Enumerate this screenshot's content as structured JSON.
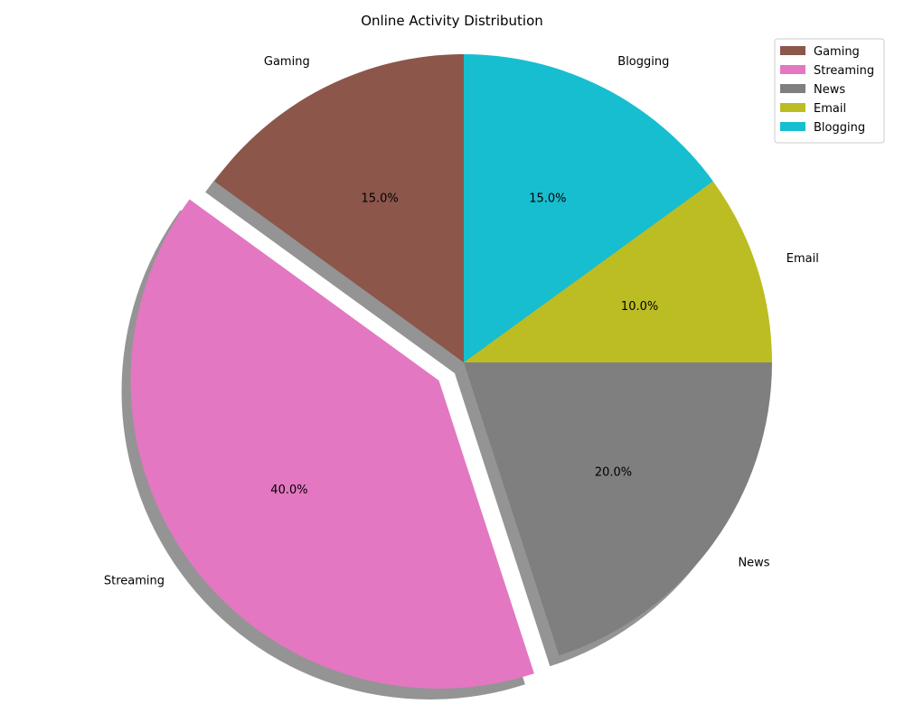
{
  "chart_data": {
    "type": "pie",
    "title": "Online Activity Distribution",
    "slices": [
      {
        "label": "Gaming",
        "value": 15.0,
        "pct_label": "15.0%",
        "color": "#8c564b",
        "explode": false
      },
      {
        "label": "Streaming",
        "value": 40.0,
        "pct_label": "40.0%",
        "color": "#e377c2",
        "explode": true
      },
      {
        "label": "News",
        "value": 20.0,
        "pct_label": "20.0%",
        "color": "#7f7f7f",
        "explode": false
      },
      {
        "label": "Email",
        "value": 10.0,
        "pct_label": "10.0%",
        "color": "#bcbd22",
        "explode": false
      },
      {
        "label": "Blogging",
        "value": 15.0,
        "pct_label": "15.0%",
        "color": "#17becf",
        "explode": false
      }
    ],
    "start_angle_deg": 90,
    "direction": "counterclockwise",
    "shadow": true,
    "legend_position": "top-right"
  }
}
